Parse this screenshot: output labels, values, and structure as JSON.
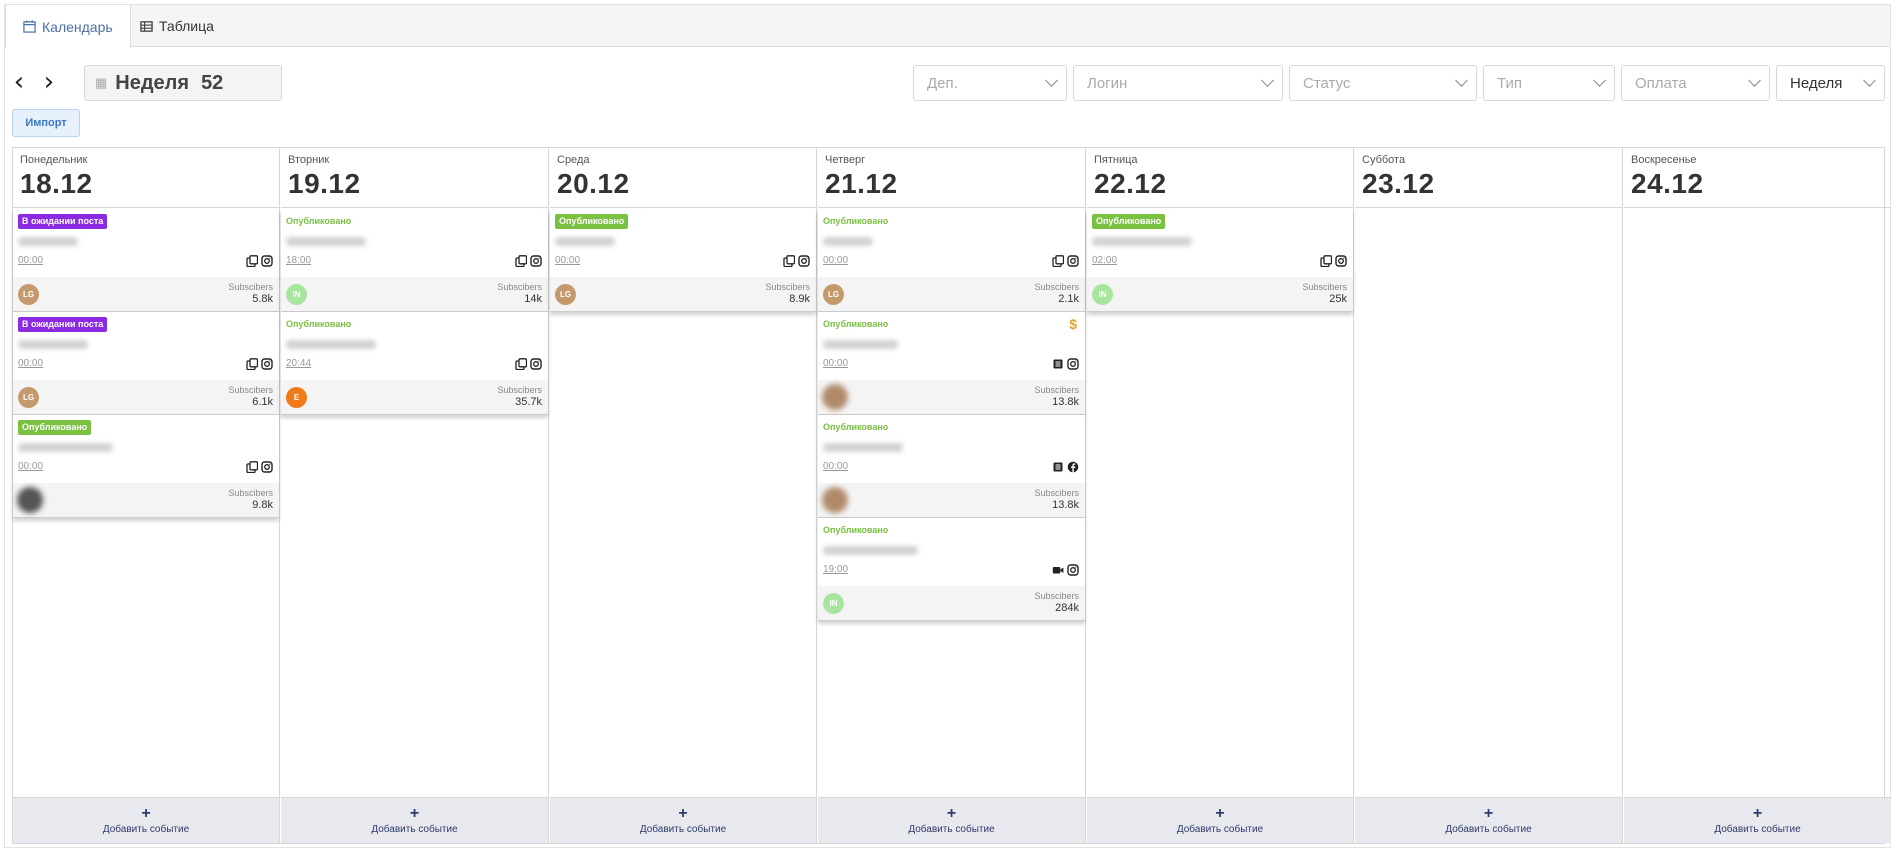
{
  "tabs": [
    {
      "label": "Календарь",
      "icon": "calendar-icon",
      "active": true
    },
    {
      "label": "Таблица",
      "icon": "table-icon",
      "active": false
    }
  ],
  "toolbar": {
    "week_label": "Неделя",
    "week_number": "52",
    "filters": [
      "Деп.",
      "Логин",
      "Статус",
      "Тип",
      "Оплата"
    ],
    "view": "Неделя",
    "import_label": "Импорт"
  },
  "colors": {
    "pending": "#8a2be2",
    "published": "#7ac142",
    "avatar_lg": "#c49a6c",
    "avatar_in": "#a8e6a0",
    "avatar_e": "#f07a1a",
    "footer": "#e8e9ee"
  },
  "add_event_label": "Добавить событие",
  "subscribers_label": "Subscibers",
  "days": [
    {
      "name": "Понедельник",
      "date": "18.12",
      "events": [
        {
          "status": "В ожидании поста",
          "style": "pending",
          "time": "00:00",
          "icons": [
            "copy-icon",
            "instagram-icon"
          ],
          "avatar": "LG",
          "avatar_color": "#c49a6c",
          "subs": "5.8k",
          "dollar": false
        },
        {
          "status": "В ожидании поста",
          "style": "pending",
          "time": "00:00",
          "icons": [
            "copy-icon",
            "instagram-icon"
          ],
          "avatar": "LG",
          "avatar_color": "#c49a6c",
          "subs": "6.1k",
          "dollar": false
        },
        {
          "status": "Опубликовано",
          "style": "pub",
          "time": "00:00",
          "icons": [
            "copy-icon",
            "instagram-icon"
          ],
          "avatar": "",
          "avatar_color": "#555555",
          "subs": "9.8k",
          "dollar": false
        }
      ]
    },
    {
      "name": "Вторник",
      "date": "19.12",
      "events": [
        {
          "status": "Опубликовано",
          "style": "text",
          "time": "18:00",
          "icons": [
            "copy-icon",
            "instagram-icon"
          ],
          "avatar": "IN",
          "avatar_color": "#a8e6a0",
          "subs": "14k",
          "dollar": false
        },
        {
          "status": "Опубликовано",
          "style": "text",
          "time": "20:44",
          "icons": [
            "copy-icon",
            "instagram-icon"
          ],
          "avatar": "E",
          "avatar_color": "#f07a1a",
          "subs": "35.7k",
          "dollar": false
        }
      ]
    },
    {
      "name": "Среда",
      "date": "20.12",
      "events": [
        {
          "status": "Опубликовано",
          "style": "pub",
          "time": "00:00",
          "icons": [
            "copy-icon",
            "instagram-icon"
          ],
          "avatar": "LG",
          "avatar_color": "#c49a6c",
          "subs": "8.9k",
          "dollar": false
        }
      ]
    },
    {
      "name": "Четверг",
      "date": "21.12",
      "events": [
        {
          "status": "Опубликовано",
          "style": "text",
          "time": "00:00",
          "icons": [
            "copy-icon",
            "instagram-icon"
          ],
          "avatar": "LG",
          "avatar_color": "#c49a6c",
          "subs": "2.1k",
          "dollar": false
        },
        {
          "status": "Опубликовано",
          "style": "text",
          "time": "00:00",
          "icons": [
            "story-icon",
            "instagram-icon"
          ],
          "avatar": "",
          "avatar_color": "#b08a6a",
          "subs": "13.8k",
          "dollar": true
        },
        {
          "status": "Опубликовано",
          "style": "text",
          "time": "00:00",
          "icons": [
            "story-icon",
            "facebook-icon"
          ],
          "avatar": "",
          "avatar_color": "#b08a6a",
          "subs": "13.8k",
          "dollar": false
        },
        {
          "status": "Опубликовано",
          "style": "text",
          "time": "19:00",
          "icons": [
            "video-icon",
            "instagram-icon"
          ],
          "avatar": "IN",
          "avatar_color": "#a8e6a0",
          "subs": "284k",
          "dollar": false
        }
      ]
    },
    {
      "name": "Пятница",
      "date": "22.12",
      "events": [
        {
          "status": "Опубликовано",
          "style": "pub",
          "time": "02:00",
          "icons": [
            "copy-icon",
            "instagram-icon"
          ],
          "avatar": "IN",
          "avatar_color": "#a8e6a0",
          "subs": "25k",
          "dollar": false
        }
      ]
    },
    {
      "name": "Суббота",
      "date": "23.12",
      "events": []
    },
    {
      "name": "Воскресенье",
      "date": "24.12",
      "events": []
    }
  ]
}
